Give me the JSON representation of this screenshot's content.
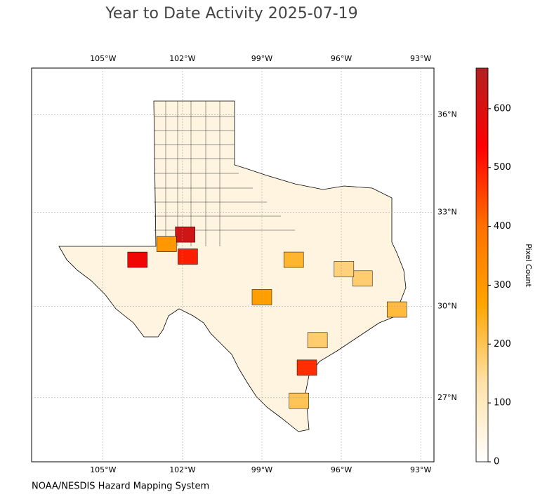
{
  "chart_data": {
    "type": "choropleth",
    "title": "Year to Date Activity 2025-07-19",
    "source": "NOAA/NESDIS Hazard Mapping System",
    "colorbar_label": "Pixel Count",
    "xlim": [
      -107.7,
      -92.5
    ],
    "ylim": [
      24.85,
      37.4
    ],
    "xticks": [
      {
        "value": -105,
        "label": "105°W"
      },
      {
        "value": -102,
        "label": "102°W"
      },
      {
        "value": -99,
        "label": "99°W"
      },
      {
        "value": -96,
        "label": "96°W"
      },
      {
        "value": -93,
        "label": "93°W"
      }
    ],
    "yticks": [
      {
        "value": 27,
        "label": "27°N"
      },
      {
        "value": 30,
        "label": "30°N"
      },
      {
        "value": 33,
        "label": "33°N"
      },
      {
        "value": 36,
        "label": "36°N"
      }
    ],
    "clim": [
      0,
      669
    ],
    "cticks": [
      0,
      100,
      200,
      300,
      400,
      500,
      600
    ],
    "colormap": [
      "#ffffff",
      "#ffe2a8",
      "#ffa500",
      "#ff7000",
      "#ff0000",
      "#b22222"
    ],
    "grid": true,
    "regions": [
      {
        "lon": -101.9,
        "lat": 32.3,
        "value": 620
      },
      {
        "lon": -103.7,
        "lat": 31.5,
        "value": 560
      },
      {
        "lon": -101.8,
        "lat": 31.6,
        "value": 500
      },
      {
        "lon": -102.6,
        "lat": 32.0,
        "value": 300
      },
      {
        "lon": -97.3,
        "lat": 28.0,
        "value": 480
      },
      {
        "lon": -97.6,
        "lat": 26.9,
        "value": 200
      },
      {
        "lon": -99.0,
        "lat": 30.3,
        "value": 280
      },
      {
        "lon": -93.9,
        "lat": 29.9,
        "value": 220
      },
      {
        "lon": -95.2,
        "lat": 30.9,
        "value": 180
      },
      {
        "lon": -97.8,
        "lat": 31.5,
        "value": 230
      },
      {
        "lon": -96.9,
        "lat": 28.9,
        "value": 180
      },
      {
        "lon": -95.9,
        "lat": 31.2,
        "value": 170
      }
    ]
  }
}
